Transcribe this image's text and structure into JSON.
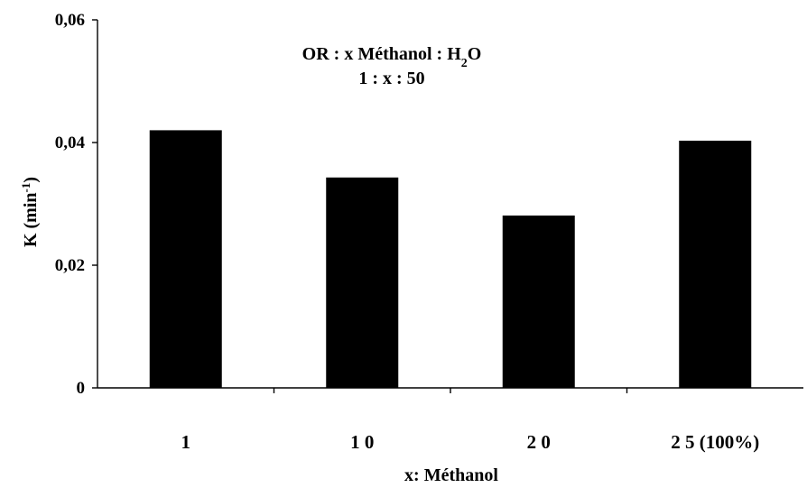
{
  "chart_data": {
    "type": "bar",
    "categories": [
      "1",
      "1 0",
      "2 0",
      "2 5 (100%)"
    ],
    "values": [
      0.042,
      0.0343,
      0.0281,
      0.0403
    ],
    "ylim": [
      0,
      0.06
    ],
    "y_ticks": [
      0,
      0.02,
      0.04,
      0.06
    ],
    "y_tick_labels": [
      "0",
      "0,02",
      "0,04",
      "0,06"
    ],
    "xlabel": "x: Méthanol",
    "ylabel": {
      "main": "K (min",
      "sup": "-1",
      "end": ")"
    },
    "annotation": {
      "line1": {
        "pre": "OR : x Méthanol : H",
        "sub": "2",
        "post": "O"
      },
      "line2": "1 : x : 50"
    },
    "bar_color": "#000000",
    "grid": false
  }
}
